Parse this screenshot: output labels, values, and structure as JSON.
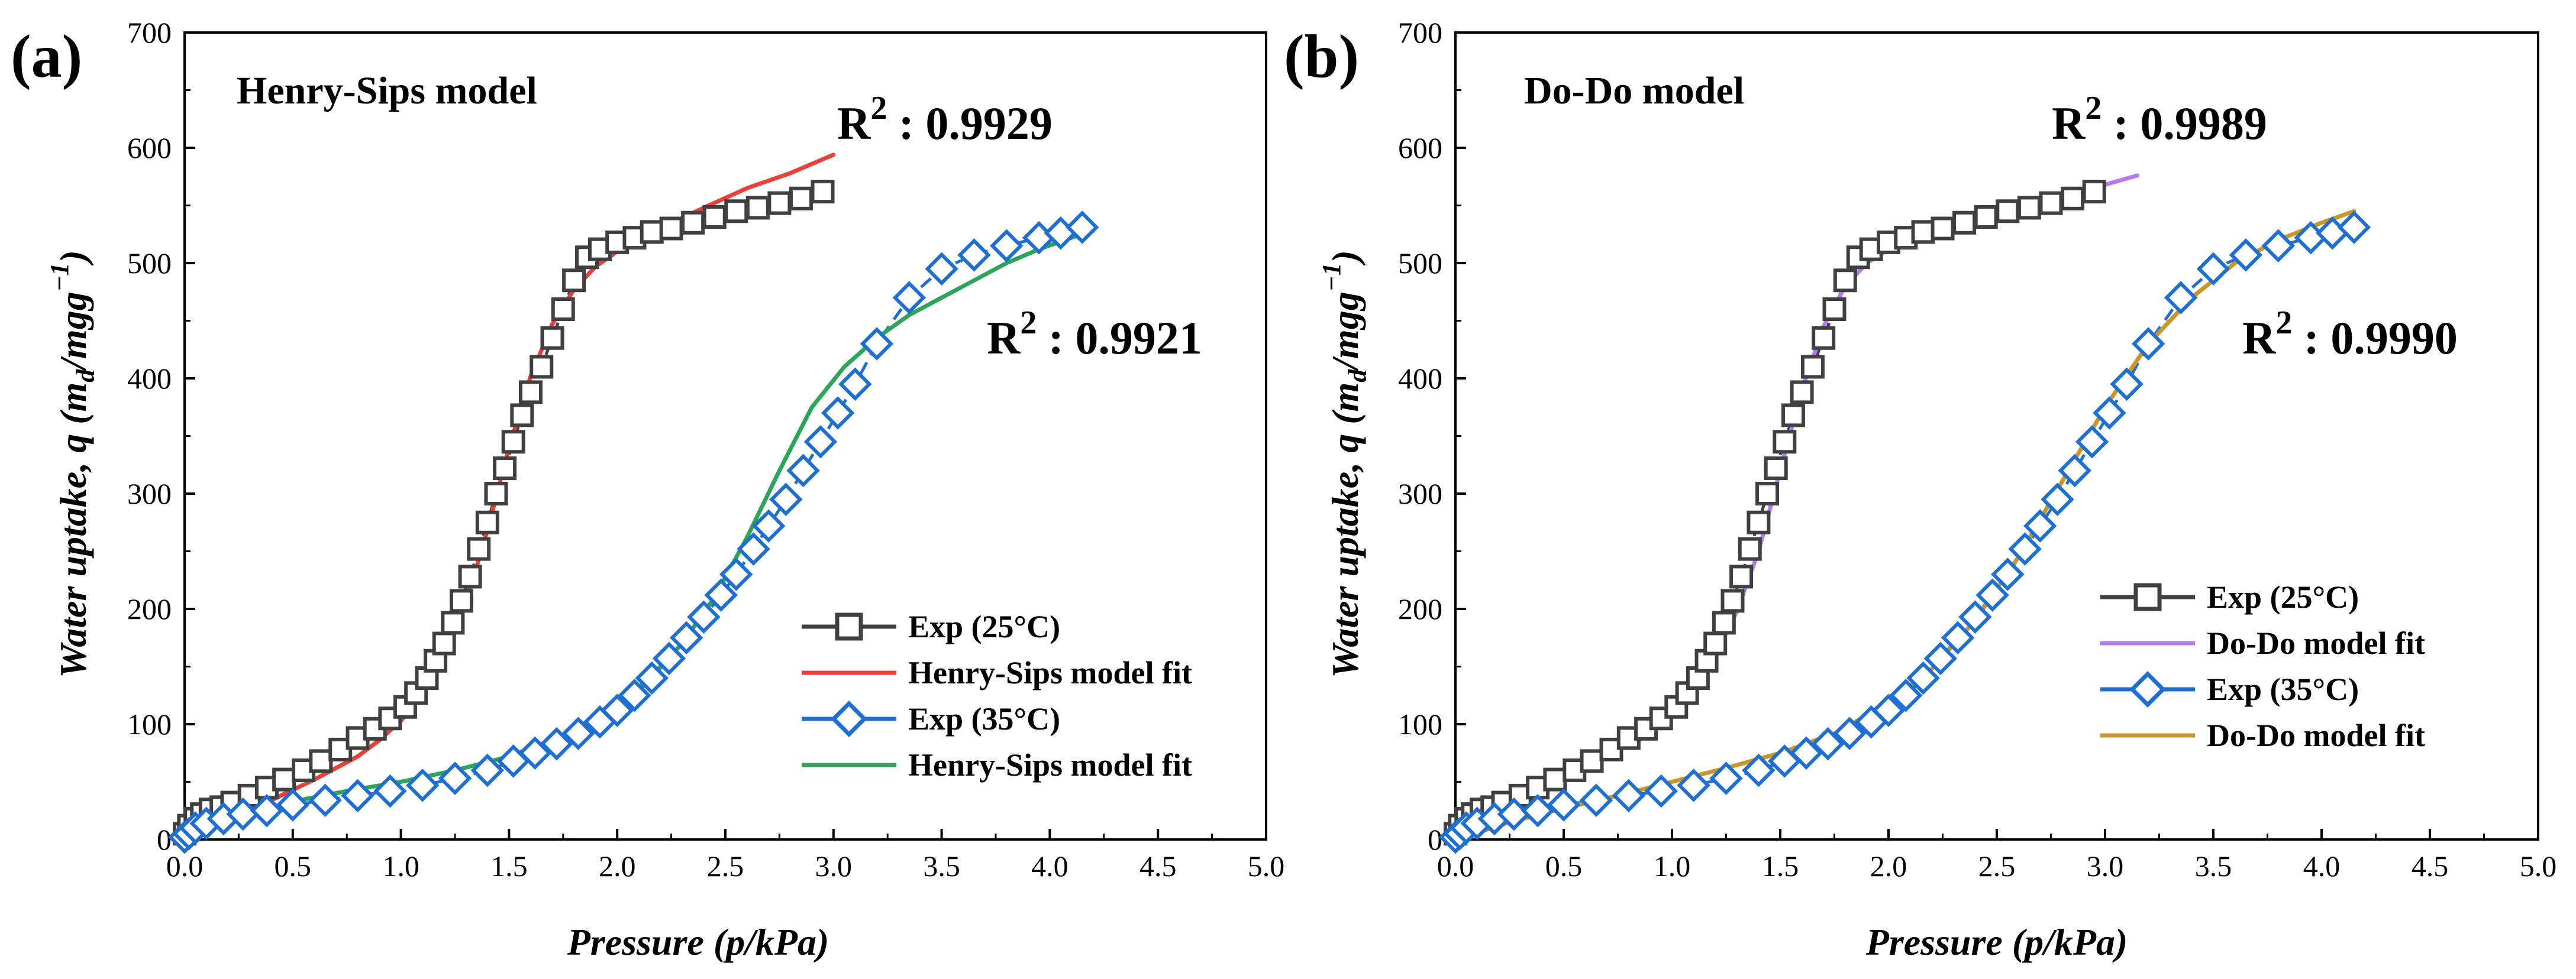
{
  "chart_data": [
    {
      "panel": "(a)",
      "type": "scatter",
      "title": "Henry-Sips model",
      "xlabel": "Pressure (p/kPa)",
      "ylabel": "Water uptake, q (m_d/mgg^-1)",
      "xlim": [
        0,
        5
      ],
      "ylim": [
        0,
        700
      ],
      "x_ticks": [
        0,
        0.5,
        1,
        1.5,
        2,
        2.5,
        3,
        3.5,
        4,
        4.5,
        5
      ],
      "y_ticks": [
        0,
        100,
        200,
        300,
        400,
        500,
        600,
        700
      ],
      "legend_position": "lower-right",
      "r2_annotations": [
        {
          "label": "R",
          "sup": "2",
          "value": " : 0.9929",
          "near": "25°C fit end"
        },
        {
          "label": "R",
          "sup": "2",
          "value": " : 0.9921",
          "near": "35°C data end"
        }
      ],
      "series": [
        {
          "name": "Exp (25°C)",
          "kind": "marker-line",
          "marker": "square",
          "color": "#404040",
          "x": [
            0.0,
            0.02,
            0.05,
            0.08,
            0.12,
            0.17,
            0.22,
            0.3,
            0.38,
            0.46,
            0.55,
            0.63,
            0.72,
            0.8,
            0.88,
            0.95,
            1.02,
            1.07,
            1.12,
            1.16,
            1.2,
            1.24,
            1.28,
            1.32,
            1.36,
            1.4,
            1.44,
            1.48,
            1.52,
            1.56,
            1.6,
            1.65,
            1.7,
            1.75,
            1.8,
            1.86,
            1.92,
            2.0,
            2.08,
            2.16,
            2.25,
            2.35,
            2.45,
            2.55,
            2.65,
            2.75,
            2.85,
            2.95
          ],
          "y": [
            5,
            12,
            18,
            22,
            26,
            28,
            32,
            38,
            45,
            52,
            60,
            68,
            78,
            88,
            96,
            105,
            115,
            127,
            140,
            155,
            170,
            188,
            207,
            228,
            252,
            275,
            300,
            322,
            345,
            368,
            388,
            410,
            435,
            460,
            485,
            505,
            512,
            518,
            522,
            527,
            530,
            535,
            540,
            545,
            548,
            552,
            556,
            562
          ]
        },
        {
          "name": "Henry-Sips model fit",
          "kind": "line",
          "color": "#e8413a",
          "x": [
            0.0,
            0.2,
            0.4,
            0.6,
            0.8,
            0.9,
            1.0,
            1.1,
            1.2,
            1.3,
            1.4,
            1.5,
            1.6,
            1.7,
            1.8,
            1.9,
            2.0,
            2.2,
            2.4,
            2.6,
            2.8,
            3.0
          ],
          "y": [
            0,
            18,
            34,
            52,
            72,
            86,
            103,
            126,
            160,
            205,
            268,
            340,
            402,
            447,
            477,
            497,
            510,
            530,
            548,
            565,
            578,
            594
          ]
        },
        {
          "name": "Exp (35°C)",
          "kind": "marker-line",
          "marker": "diamond",
          "color": "#1f6fd0",
          "x": [
            0.0,
            0.02,
            0.05,
            0.1,
            0.18,
            0.27,
            0.38,
            0.5,
            0.65,
            0.8,
            0.95,
            1.1,
            1.25,
            1.4,
            1.52,
            1.62,
            1.72,
            1.82,
            1.92,
            2.0,
            2.08,
            2.16,
            2.24,
            2.32,
            2.4,
            2.48,
            2.55,
            2.63,
            2.7,
            2.78,
            2.86,
            2.94,
            3.02,
            3.1,
            3.2,
            3.35,
            3.5,
            3.65,
            3.8,
            3.95,
            4.05,
            4.15
          ],
          "y": [
            2,
            5,
            10,
            14,
            18,
            22,
            25,
            30,
            34,
            38,
            42,
            47,
            53,
            60,
            68,
            75,
            83,
            92,
            102,
            112,
            125,
            140,
            157,
            175,
            193,
            212,
            230,
            252,
            272,
            295,
            320,
            345,
            370,
            395,
            430,
            470,
            495,
            507,
            515,
            522,
            526,
            531
          ]
        },
        {
          "name": "Henry-Sips model fit",
          "kind": "line",
          "color": "#2ea35a",
          "x": [
            0.0,
            0.25,
            0.5,
            0.75,
            1.0,
            1.25,
            1.5,
            1.75,
            2.0,
            2.15,
            2.3,
            2.45,
            2.6,
            2.75,
            2.9,
            3.05,
            3.2,
            3.35,
            3.5,
            3.65,
            3.8,
            3.95,
            4.1,
            4.2
          ],
          "y": [
            0,
            20,
            33,
            42,
            50,
            60,
            72,
            90,
            115,
            140,
            170,
            210,
            262,
            320,
            375,
            410,
            435,
            455,
            470,
            485,
            500,
            512,
            522,
            528
          ]
        }
      ]
    },
    {
      "panel": "(b)",
      "type": "scatter",
      "title": "Do-Do model",
      "xlabel": "Pressure (p/kPa)",
      "ylabel": "Water uptake, q (m_d/mgg^-1)",
      "xlim": [
        0,
        5
      ],
      "ylim": [
        0,
        700
      ],
      "x_ticks": [
        0,
        0.5,
        1,
        1.5,
        2,
        2.5,
        3,
        3.5,
        4,
        4.5,
        5
      ],
      "y_ticks": [
        0,
        100,
        200,
        300,
        400,
        500,
        600,
        700
      ],
      "legend_position": "lower-right",
      "r2_annotations": [
        {
          "label": "R",
          "sup": "2",
          "value": " : 0.9989",
          "near": "25°C fit end"
        },
        {
          "label": "R",
          "sup": "2",
          "value": " : 0.9990",
          "near": "35°C data end"
        }
      ],
      "series": [
        {
          "name": "Exp (25°C)",
          "kind": "marker-line",
          "marker": "square",
          "color": "#404040",
          "x": [
            0.0,
            0.02,
            0.05,
            0.08,
            0.12,
            0.17,
            0.22,
            0.3,
            0.38,
            0.46,
            0.55,
            0.63,
            0.72,
            0.8,
            0.88,
            0.95,
            1.02,
            1.07,
            1.12,
            1.16,
            1.2,
            1.24,
            1.28,
            1.32,
            1.36,
            1.4,
            1.44,
            1.48,
            1.52,
            1.56,
            1.6,
            1.65,
            1.7,
            1.75,
            1.8,
            1.86,
            1.92,
            2.0,
            2.08,
            2.16,
            2.25,
            2.35,
            2.45,
            2.55,
            2.65,
            2.75,
            2.85,
            2.95
          ],
          "y": [
            5,
            12,
            18,
            22,
            26,
            28,
            32,
            38,
            45,
            52,
            60,
            68,
            78,
            88,
            96,
            105,
            115,
            127,
            140,
            155,
            170,
            188,
            207,
            228,
            252,
            275,
            300,
            322,
            345,
            368,
            388,
            410,
            435,
            460,
            485,
            505,
            512,
            518,
            522,
            527,
            530,
            535,
            540,
            545,
            548,
            552,
            556,
            562
          ]
        },
        {
          "name": "Do-Do model fit",
          "kind": "line",
          "color": "#b57be8",
          "x": [
            0.0,
            0.2,
            0.4,
            0.6,
            0.8,
            1.0,
            1.1,
            1.2,
            1.3,
            1.4,
            1.5,
            1.6,
            1.7,
            1.8,
            1.9,
            2.0,
            2.2,
            2.4,
            2.6,
            2.8,
            3.0,
            3.15
          ],
          "y": [
            0,
            28,
            50,
            70,
            90,
            112,
            132,
            160,
            198,
            250,
            320,
            390,
            445,
            480,
            500,
            512,
            527,
            540,
            550,
            558,
            568,
            576
          ]
        },
        {
          "name": "Exp (35°C)",
          "kind": "marker-line",
          "marker": "diamond",
          "color": "#1f6fd0",
          "x": [
            0.0,
            0.02,
            0.05,
            0.1,
            0.18,
            0.27,
            0.38,
            0.5,
            0.65,
            0.8,
            0.95,
            1.1,
            1.25,
            1.4,
            1.52,
            1.62,
            1.72,
            1.82,
            1.92,
            2.0,
            2.08,
            2.16,
            2.24,
            2.32,
            2.4,
            2.48,
            2.55,
            2.63,
            2.7,
            2.78,
            2.86,
            2.94,
            3.02,
            3.1,
            3.2,
            3.35,
            3.5,
            3.65,
            3.8,
            3.95,
            4.05,
            4.15
          ],
          "y": [
            2,
            5,
            10,
            14,
            18,
            22,
            25,
            30,
            34,
            38,
            42,
            47,
            53,
            60,
            68,
            75,
            83,
            92,
            102,
            112,
            125,
            140,
            157,
            175,
            193,
            212,
            230,
            252,
            272,
            295,
            320,
            345,
            370,
            395,
            430,
            470,
            495,
            507,
            515,
            522,
            526,
            531
          ]
        },
        {
          "name": "Do-Do model fit",
          "kind": "line",
          "color": "#c8962a",
          "x": [
            0.0,
            0.25,
            0.5,
            0.75,
            1.0,
            1.25,
            1.5,
            1.75,
            2.0,
            2.2,
            2.4,
            2.6,
            2.8,
            3.0,
            3.2,
            3.4,
            3.6,
            3.8,
            4.0,
            4.15
          ],
          "y": [
            0,
            15,
            27,
            38,
            50,
            62,
            75,
            92,
            118,
            148,
            190,
            245,
            310,
            375,
            430,
            470,
            500,
            520,
            535,
            545
          ]
        }
      ]
    }
  ]
}
